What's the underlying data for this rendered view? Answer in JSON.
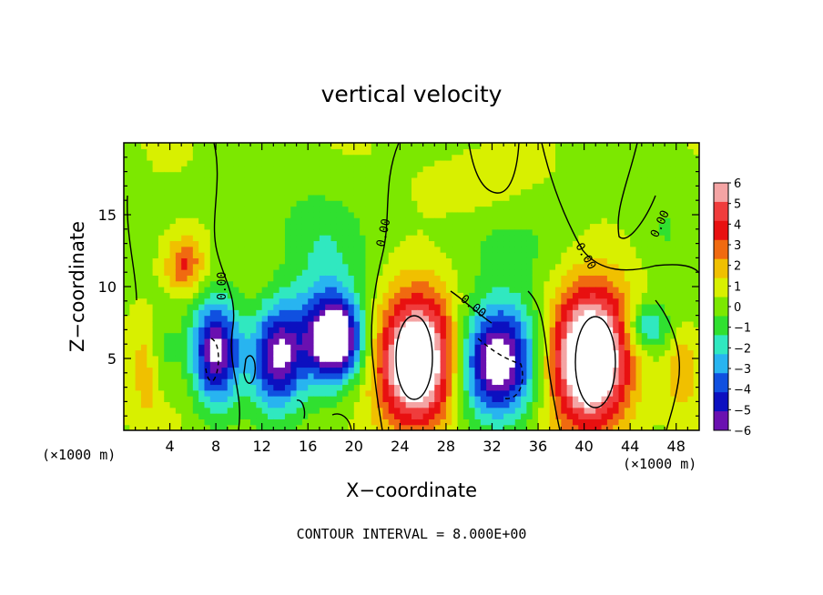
{
  "chart_data": {
    "type": "heatmap",
    "title": "vertical velocity",
    "xlabel": "X−coordinate",
    "ylabel": "Z−coordinate",
    "x_unit_left": "(×1000 m)",
    "x_unit_right": "(×1000 m)",
    "footer": "CONTOUR INTERVAL = 8.000E+00",
    "xlim": [
      0,
      50
    ],
    "ylim": [
      0,
      20
    ],
    "x_ticks": [
      4,
      8,
      12,
      16,
      20,
      24,
      28,
      32,
      36,
      40,
      44,
      48
    ],
    "y_ticks": [
      5,
      10,
      15
    ],
    "colorbar": {
      "labels": [
        "6",
        "5",
        "4",
        "3",
        "2",
        "1",
        "0",
        "−1",
        "−2",
        "−3",
        "−4",
        "−5",
        "−6"
      ],
      "colors": [
        "#f4a4a4",
        "#f03c3c",
        "#e81010",
        "#f06a10",
        "#f0c000",
        "#d8f000",
        "#7ce800",
        "#30e030",
        "#30e8c0",
        "#28b4f0",
        "#1050e0",
        "#0c10c0",
        "#6a10b0"
      ]
    },
    "contour_labels": [
      "0.00",
      "0.00",
      "0.00",
      "0.00",
      "0.00"
    ],
    "features": [
      {
        "sign": "down",
        "x": 3.2,
        "z": 4.8,
        "sx": 1.0,
        "sz": 2.4,
        "amp": -4.8
      },
      {
        "sign": "up",
        "x": 2.8,
        "z": 4.5,
        "sx": 1.2,
        "sz": 2.6,
        "amp": 4.6
      },
      {
        "sign": "up",
        "x": 5.3,
        "z": 11.5,
        "sx": 1.2,
        "sz": 1.4,
        "amp": 3.5
      },
      {
        "sign": "down",
        "x": 8.0,
        "z": 5.5,
        "sx": 1.5,
        "sz": 2.6,
        "amp": -7.0
      },
      {
        "sign": "down",
        "x": 13.3,
        "z": 5.2,
        "sx": 1.6,
        "sz": 2.6,
        "amp": -6.5
      },
      {
        "sign": "down",
        "x": 17.5,
        "z": 7.0,
        "sx": 2.2,
        "sz": 3.0,
        "amp": -4.2
      },
      {
        "sign": "down",
        "x": 18.5,
        "z": 6.3,
        "sx": 1.5,
        "sz": 1.8,
        "amp": -6.0
      },
      {
        "sign": "up",
        "x": 25.5,
        "z": 4.8,
        "sx": 2.4,
        "sz": 3.2,
        "amp": 9.0
      },
      {
        "sign": "down",
        "x": 32.5,
        "z": 4.8,
        "sx": 2.4,
        "sz": 2.8,
        "amp": -8.0
      },
      {
        "sign": "up",
        "x": 40.5,
        "z": 5.0,
        "sx": 2.4,
        "sz": 3.4,
        "amp": 9.5
      },
      {
        "sign": "down",
        "x": 45.5,
        "z": 7.2,
        "sx": 1.3,
        "sz": 1.2,
        "amp": -3.5
      },
      {
        "sign": "up",
        "x": 48.5,
        "z": 4.2,
        "sx": 1.0,
        "sz": 2.0,
        "amp": 2.0
      }
    ]
  }
}
